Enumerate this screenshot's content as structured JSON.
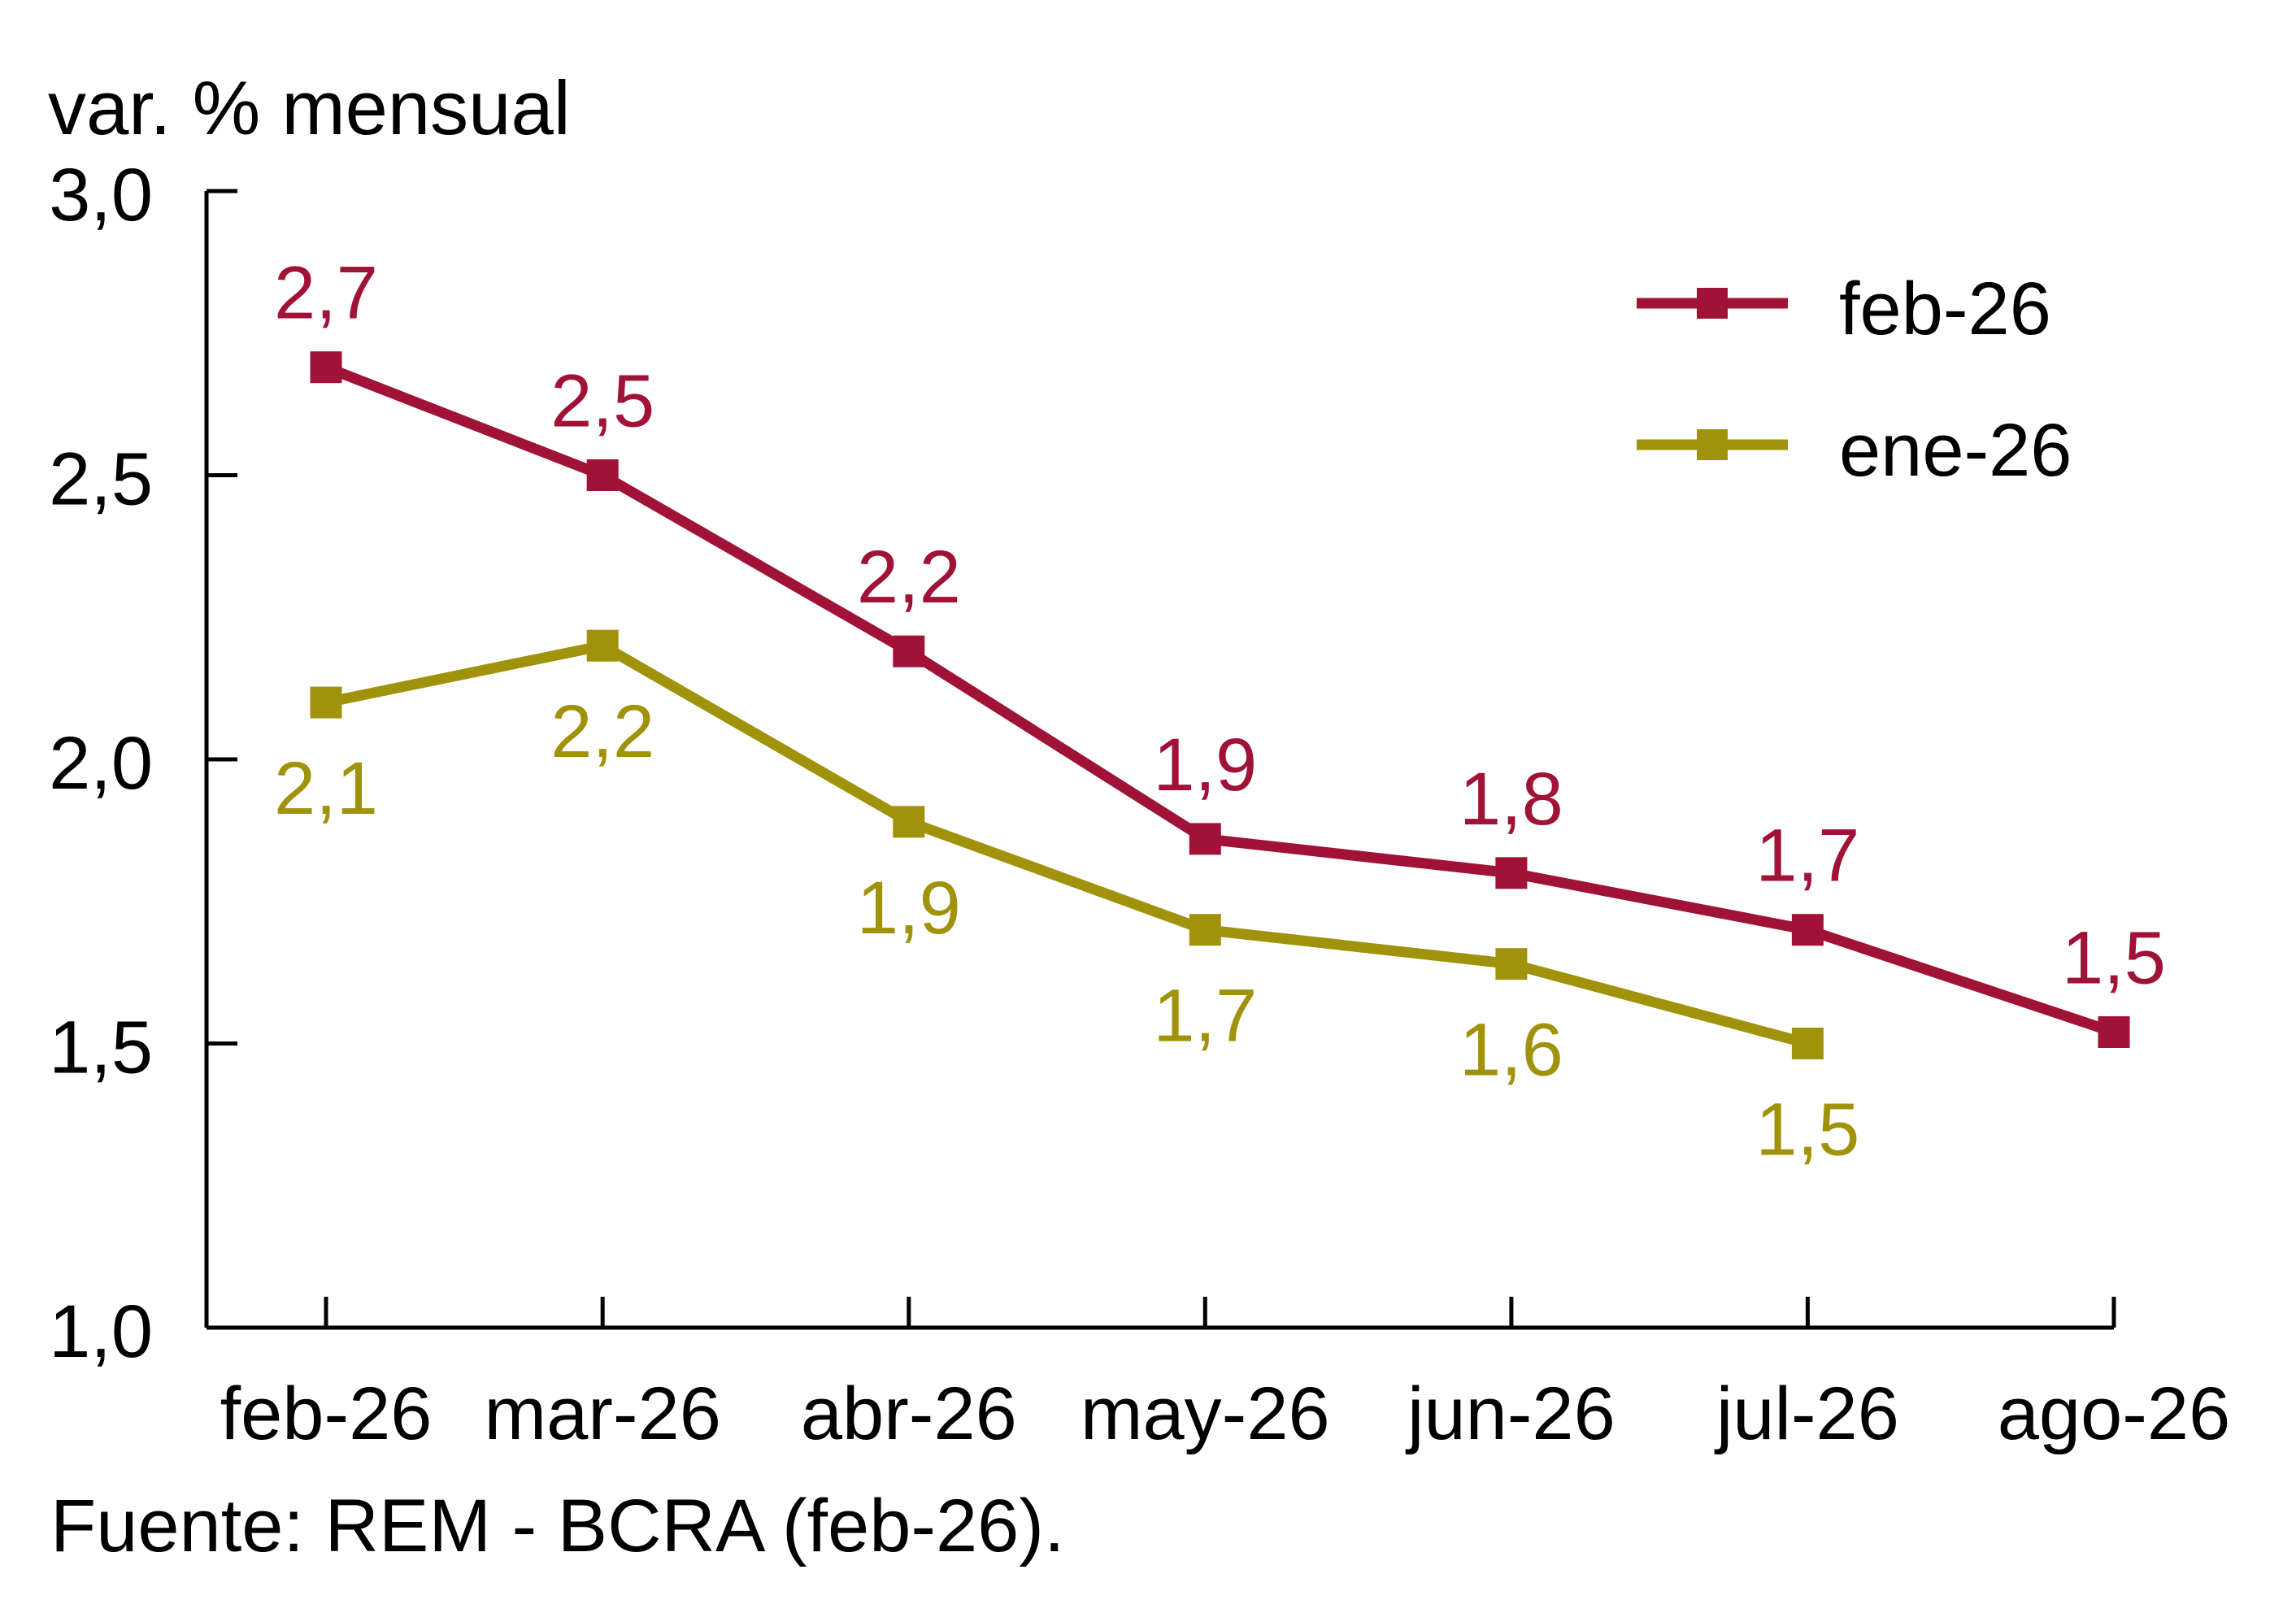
{
  "page": {
    "background": "#FFFFFF"
  },
  "title": "var. % mensual",
  "source": "Fuente: REM - BCRA (feb-26).",
  "chart_data": {
    "type": "line",
    "title": "var. % mensual",
    "source": "Fuente: REM - BCRA (feb-26).",
    "categories": [
      "feb-26",
      "mar-26",
      "abr-26",
      "may-26",
      "jun-26",
      "jul-26",
      "ago-26"
    ],
    "x_scale": "date",
    "x_day_offsets": [
      0,
      28,
      59,
      89,
      120,
      150,
      181
    ],
    "series": [
      {
        "name": "ene-26",
        "color": "#A0930B",
        "marker": "square",
        "label_position": "below",
        "values": [
          2.1,
          2.2,
          1.89,
          1.7,
          1.64,
          1.5,
          null
        ],
        "labels": [
          "2,1",
          "2,2",
          "1,9",
          "1,7",
          "1,6",
          "1,5",
          null
        ]
      },
      {
        "name": "feb-26",
        "color": "#A01236",
        "marker": "square",
        "label_position": "above",
        "values": [
          2.69,
          2.5,
          2.19,
          1.86,
          1.8,
          1.7,
          1.52
        ],
        "labels": [
          "2,7",
          "2,5",
          "2,2",
          "1,9",
          "1,8",
          "1,7",
          "1,5"
        ]
      }
    ],
    "legend": {
      "position": "top-right",
      "items": [
        "feb-26",
        "ene-26"
      ]
    },
    "ylim": [
      1.0,
      3.0
    ],
    "yticks": {
      "values": [
        3.0,
        2.5,
        2.0,
        1.5,
        1.0
      ],
      "labels": [
        "3,0",
        "2,5",
        "2,0",
        "1,5",
        "1,0"
      ]
    },
    "grid": false,
    "axis_color": "#000000",
    "text_color": "#000000"
  }
}
